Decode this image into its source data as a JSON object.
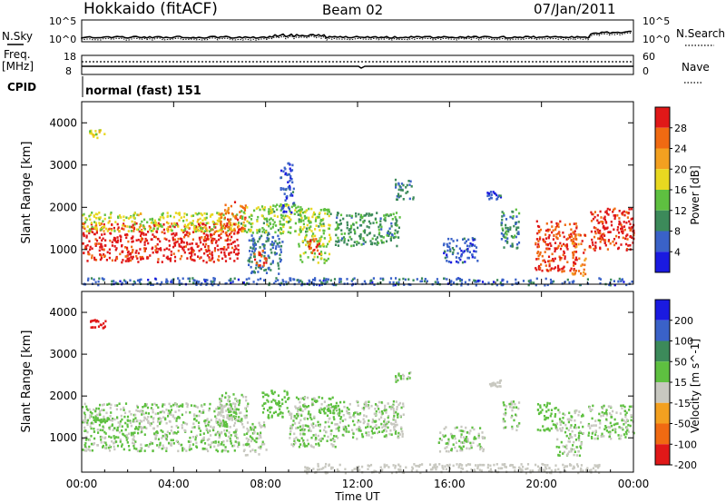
{
  "header": {
    "station": "Hokkaido (fitACF)",
    "beam": "Beam 02",
    "date": "07/Jan/2011"
  },
  "status_panel": {
    "noise_sky_label": "N.Sky",
    "noise_sky_ticks": [
      "10^5",
      "10^0"
    ],
    "noise_search_label": "N.Search",
    "noise_search_ticks": [
      "10^5",
      "10^0"
    ],
    "freq_label": "Freq.",
    "freq_unit": "[MHz]",
    "freq_ticks": [
      "18",
      "8"
    ],
    "nave_label": "Nave",
    "nave_ticks": [
      "60",
      "0"
    ],
    "cpid_label": "CPID",
    "cpid_value": "normal (fast) 151"
  },
  "chart_data": [
    {
      "type": "heatmap",
      "quantity": "Power",
      "xlabel": "Time UT",
      "ylabel": "Slant Range [km]",
      "xlim": [
        0,
        24
      ],
      "ylim": [
        180,
        4500
      ],
      "x_ticks": [
        "00:00",
        "04:00",
        "08:00",
        "12:00",
        "16:00",
        "20:00",
        "00:00"
      ],
      "y_ticks": [
        "1000",
        "2000",
        "3000",
        "4000"
      ],
      "colorbar": {
        "label": "Power [dB]",
        "ticks": [
          "4",
          "8",
          "12",
          "16",
          "20",
          "24",
          "28"
        ],
        "range": [
          0,
          30
        ],
        "colors": [
          "#1a1ae0",
          "#3a62c8",
          "#3c8a5a",
          "#5ec040",
          "#e8d820",
          "#f3a020",
          "#f06a12",
          "#e01818"
        ]
      },
      "echo_regions": [
        {
          "t0": 0.0,
          "t1": 6.8,
          "r0": 720,
          "r1": 1650,
          "level": 28
        },
        {
          "t0": 0.0,
          "t1": 6.8,
          "r0": 1450,
          "r1": 1900,
          "level": 16
        },
        {
          "t0": 5.9,
          "t1": 7.1,
          "r0": 1400,
          "r1": 2150,
          "level": 24
        },
        {
          "t0": 6.9,
          "t1": 9.6,
          "r0": 1400,
          "r1": 2100,
          "level": 14
        },
        {
          "t0": 7.2,
          "t1": 8.7,
          "r0": 450,
          "r1": 1400,
          "level": 7
        },
        {
          "t0": 7.4,
          "t1": 8.0,
          "r0": 650,
          "r1": 1000,
          "level": 26
        },
        {
          "t0": 8.6,
          "t1": 9.2,
          "r0": 1900,
          "r1": 3100,
          "level": 5
        },
        {
          "t0": 9.4,
          "t1": 10.8,
          "r0": 700,
          "r1": 2000,
          "level": 14
        },
        {
          "t0": 9.8,
          "t1": 10.3,
          "r0": 900,
          "r1": 1300,
          "level": 25
        },
        {
          "t0": 11.0,
          "t1": 13.8,
          "r0": 1100,
          "r1": 1900,
          "level": 10
        },
        {
          "t0": 13.6,
          "t1": 14.4,
          "r0": 2200,
          "r1": 2700,
          "level": 8
        },
        {
          "t0": 15.7,
          "t1": 17.2,
          "r0": 700,
          "r1": 1300,
          "level": 5
        },
        {
          "t0": 17.6,
          "t1": 18.2,
          "r0": 2200,
          "r1": 2400,
          "level": 5
        },
        {
          "t0": 18.2,
          "t1": 19.0,
          "r0": 1000,
          "r1": 2000,
          "level": 9
        },
        {
          "t0": 19.7,
          "t1": 21.5,
          "r0": 500,
          "r1": 1700,
          "level": 27
        },
        {
          "t0": 21.3,
          "t1": 21.9,
          "r0": 400,
          "r1": 1400,
          "level": 24
        },
        {
          "t0": 22.0,
          "t1": 24.0,
          "r0": 1000,
          "r1": 2000,
          "level": 28
        },
        {
          "t0": 0.3,
          "t1": 1.0,
          "r0": 3650,
          "r1": 3850,
          "level": 17
        },
        {
          "t0": 0.0,
          "t1": 24.0,
          "r0": 180,
          "r1": 350,
          "level": 6
        }
      ]
    },
    {
      "type": "heatmap",
      "quantity": "Velocity",
      "xlabel": "Time UT",
      "ylabel": "Slant Range [km]",
      "xlim": [
        0,
        24
      ],
      "ylim": [
        180,
        4500
      ],
      "x_ticks": [
        "00:00",
        "04:00",
        "08:00",
        "12:00",
        "16:00",
        "20:00",
        "00:00"
      ],
      "y_ticks": [
        "1000",
        "2000",
        "3000",
        "4000"
      ],
      "colorbar": {
        "label": "Velocity [m s^-1]",
        "ticks": [
          "200",
          "100",
          "50",
          "15",
          "-15",
          "-50",
          "-100",
          "-200"
        ],
        "range": [
          -250,
          250
        ],
        "colors": [
          "#1a1ae0",
          "#3a62c8",
          "#3c8a5a",
          "#5ec040",
          "#c8c8c0",
          "#f3a020",
          "#f06a12",
          "#e01818"
        ]
      },
      "echo_regions": [
        {
          "t0": 0.0,
          "t1": 6.8,
          "r0": 700,
          "r1": 1850,
          "level": 0
        },
        {
          "t0": 0.5,
          "t1": 1.2,
          "r0": 1400,
          "r1": 1500,
          "level": 30
        },
        {
          "t0": 5.8,
          "t1": 7.2,
          "r0": 1300,
          "r1": 2100,
          "level": 0
        },
        {
          "t0": 7.0,
          "t1": 8.0,
          "r0": 600,
          "r1": 1400,
          "level": 0
        },
        {
          "t0": 7.8,
          "t1": 9.0,
          "r0": 1500,
          "r1": 2150,
          "level": 30
        },
        {
          "t0": 9.0,
          "t1": 11.0,
          "r0": 800,
          "r1": 2000,
          "level": 0
        },
        {
          "t0": 10.3,
          "t1": 11.2,
          "r0": 1600,
          "r1": 1750,
          "level": 30
        },
        {
          "t0": 11.0,
          "t1": 14.0,
          "r0": 1000,
          "r1": 1900,
          "level": 0
        },
        {
          "t0": 13.6,
          "t1": 14.3,
          "r0": 2350,
          "r1": 2600,
          "level": 0
        },
        {
          "t0": 15.5,
          "t1": 17.5,
          "r0": 700,
          "r1": 1300,
          "level": 0
        },
        {
          "t0": 17.6,
          "t1": 18.2,
          "r0": 2250,
          "r1": 2400,
          "level": -35
        },
        {
          "t0": 18.3,
          "t1": 19.0,
          "r0": 1200,
          "r1": 1900,
          "level": 0
        },
        {
          "t0": 19.8,
          "t1": 20.6,
          "r0": 1200,
          "r1": 1900,
          "level": 30
        },
        {
          "t0": 20.6,
          "t1": 21.8,
          "r0": 600,
          "r1": 1700,
          "level": 0
        },
        {
          "t0": 22.0,
          "t1": 24.0,
          "r0": 1000,
          "r1": 1800,
          "level": 0
        },
        {
          "t0": 0.3,
          "t1": 1.0,
          "r0": 3650,
          "r1": 3850,
          "level": -200
        },
        {
          "t0": 9.5,
          "t1": 22.5,
          "r0": 180,
          "r1": 400,
          "level": -35
        }
      ]
    }
  ],
  "legend_colors": {
    "axis": "#000000",
    "nsky_line": "#000000"
  }
}
